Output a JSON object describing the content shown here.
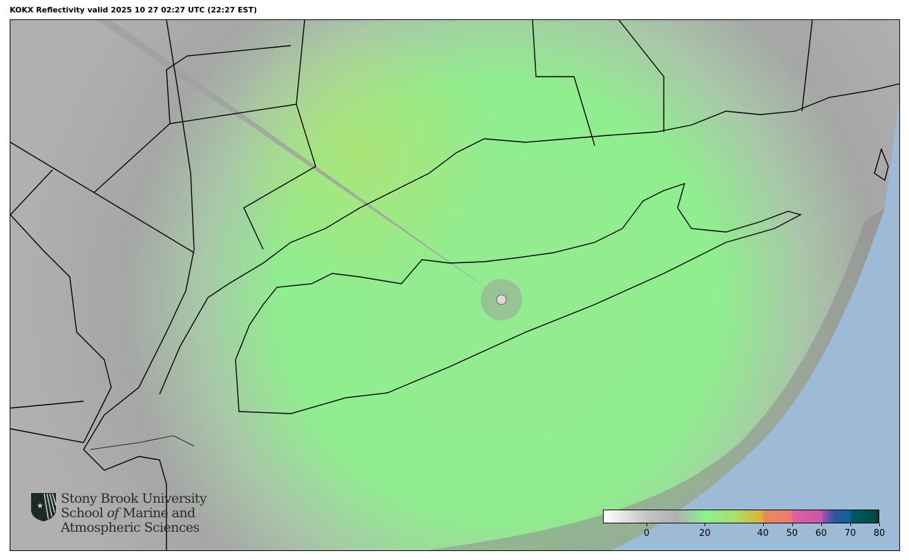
{
  "title": "KOKX Reflectivity valid 2025 10 27 02:27 UTC (22:27 EST)",
  "logo": {
    "line1": "Stony Brook University",
    "line2_a": "School ",
    "line2_b": "of",
    "line2_c": " Marine and",
    "line3": "Atmospheric Sciences"
  },
  "colorbar": {
    "range": [
      -15,
      80
    ],
    "ticks": [
      {
        "value": 0,
        "label": "0"
      },
      {
        "value": 20,
        "label": "20"
      },
      {
        "value": 40,
        "label": "40"
      },
      {
        "value": 50,
        "label": "50"
      },
      {
        "value": 60,
        "label": "60"
      },
      {
        "value": 70,
        "label": "70"
      },
      {
        "value": 80,
        "label": "80"
      }
    ],
    "stops": [
      {
        "value": -15,
        "color": "#ffffff"
      },
      {
        "value": 0,
        "color": "#c4c4c4"
      },
      {
        "value": 10,
        "color": "#b0b0b0"
      },
      {
        "value": 20,
        "color": "#8ef08e"
      },
      {
        "value": 30,
        "color": "#a8e070"
      },
      {
        "value": 40,
        "color": "#e0b030"
      },
      {
        "value": 40,
        "color": "#e88c5c"
      },
      {
        "value": 50,
        "color": "#e87c70"
      },
      {
        "value": 50,
        "color": "#e060a0"
      },
      {
        "value": 60,
        "color": "#c858a8"
      },
      {
        "value": 61,
        "color": "#9850b0"
      },
      {
        "value": 65,
        "color": "#2858a0"
      },
      {
        "value": 70,
        "color": "#10609a"
      },
      {
        "value": 71,
        "color": "#005a5e"
      },
      {
        "value": 79,
        "color": "#004848"
      },
      {
        "value": 79.5,
        "color": "#003a20"
      }
    ]
  },
  "colors": {
    "land_echo": "#8ef08e",
    "ocean": "#9dbbd6",
    "clutter": "#a8a8a8"
  }
}
